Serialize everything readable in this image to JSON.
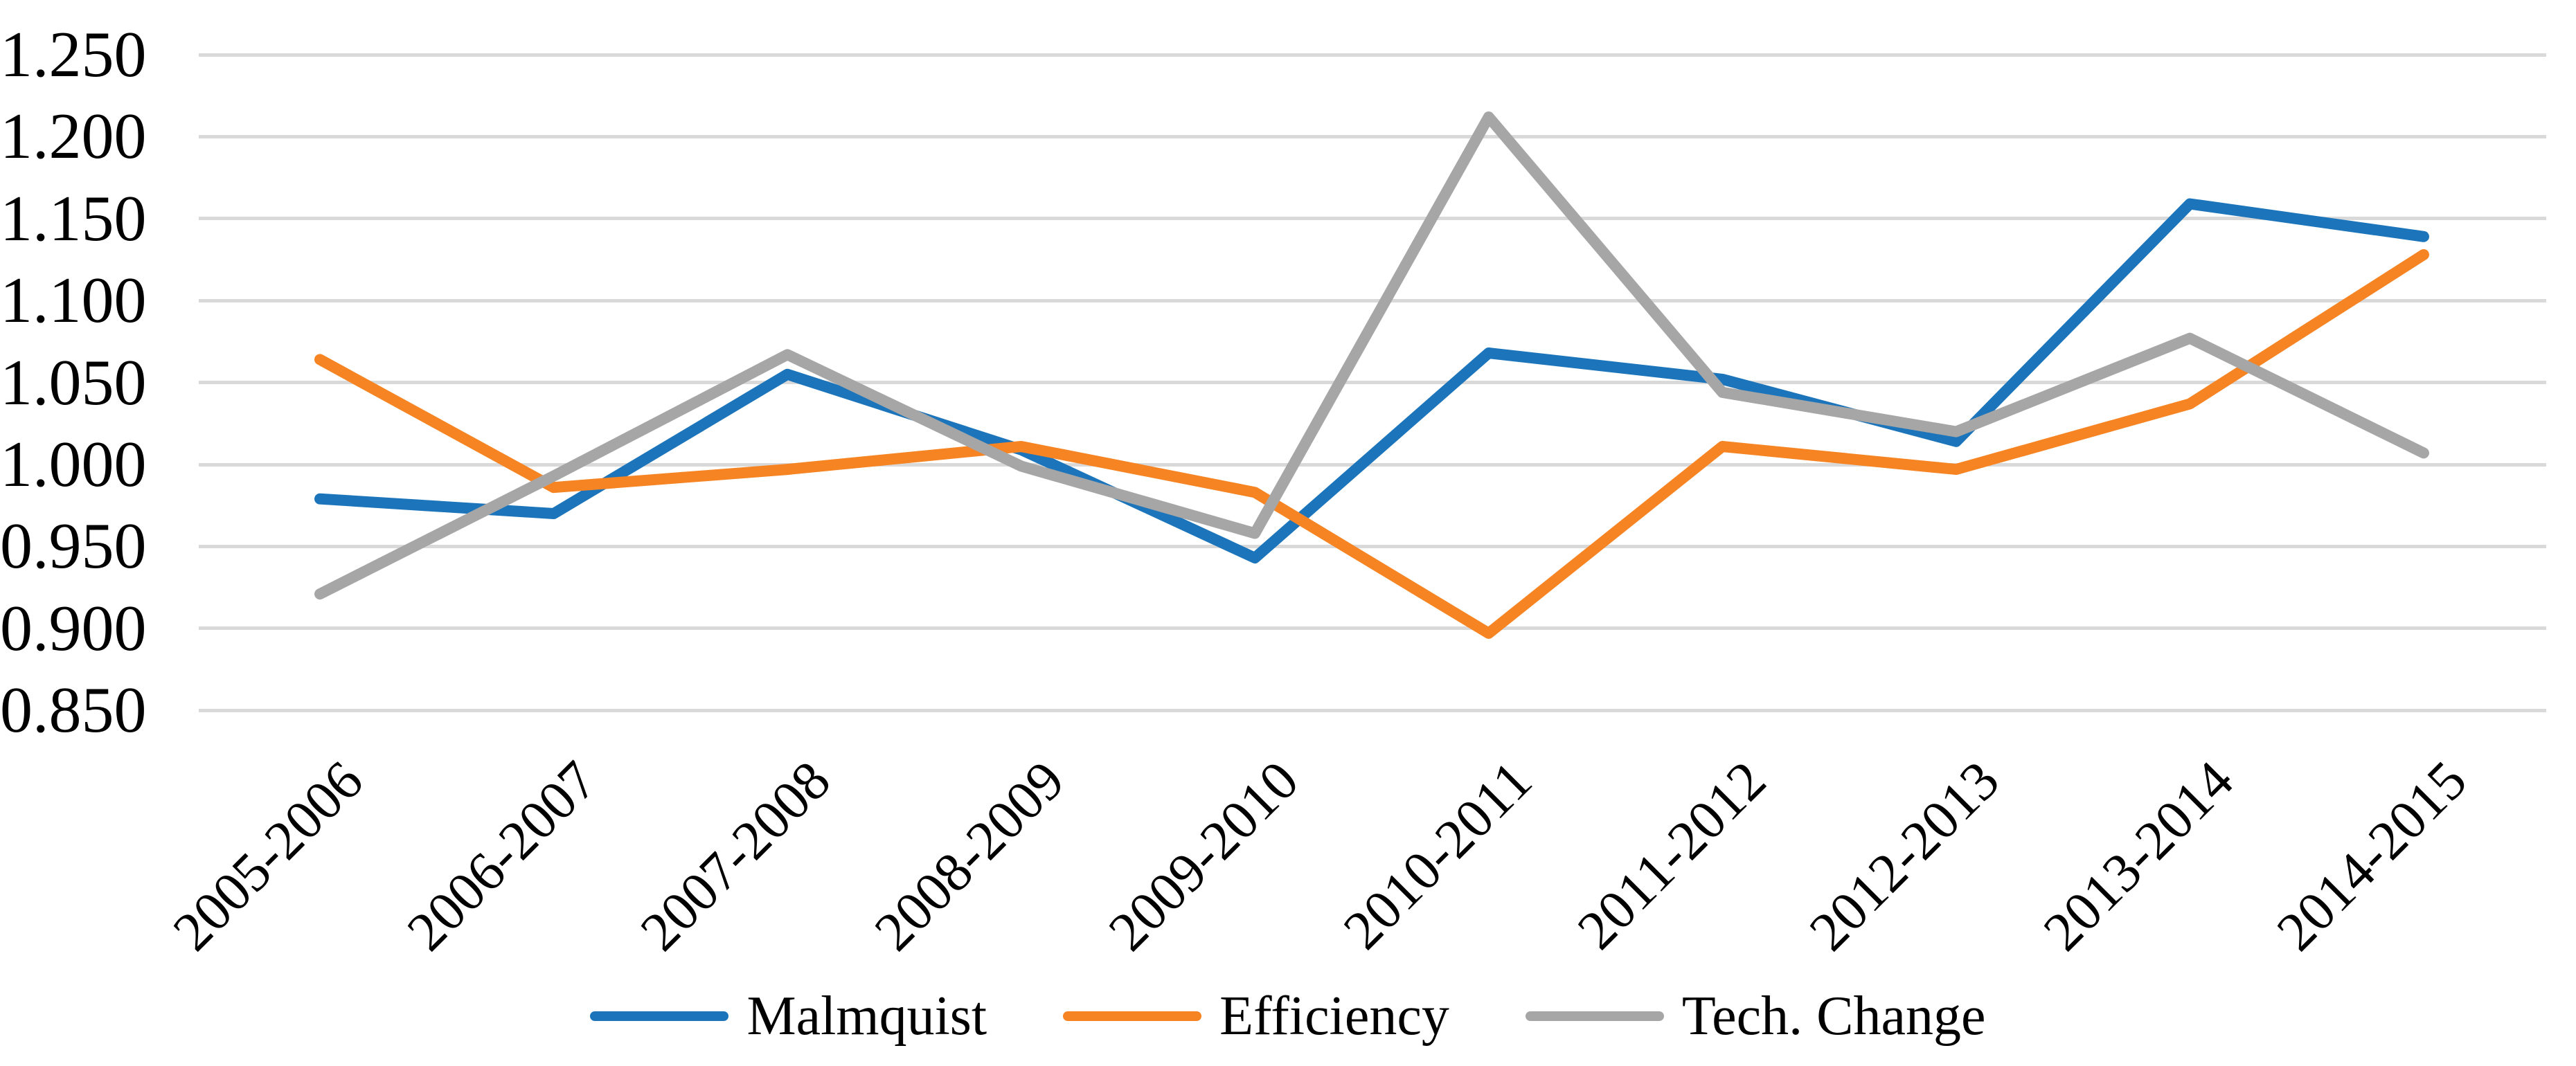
{
  "chart_data": {
    "type": "line",
    "title": "",
    "categories": [
      "2005-2006",
      "2006-2007",
      "2007-2008",
      "2008-2009",
      "2009-2010",
      "2010-2011",
      "2011-2012",
      "2012-2013",
      "2013-2014",
      "2014-2015"
    ],
    "series": [
      {
        "name": "Malmquist",
        "color": "#1c75bb",
        "values": [
          0.979,
          0.97,
          1.055,
          1.009,
          0.943,
          1.068,
          1.052,
          1.014,
          1.159,
          1.139
        ]
      },
      {
        "name": "Efficiency",
        "color": "#f68423",
        "values": [
          1.064,
          0.986,
          0.997,
          1.011,
          0.983,
          0.897,
          1.011,
          0.997,
          1.037,
          1.128
        ]
      },
      {
        "name": "Tech. Change",
        "color": "#a6a6a6",
        "values": [
          0.921,
          0.993,
          1.067,
          0.999,
          0.958,
          1.212,
          1.044,
          1.02,
          1.077,
          1.007
        ]
      }
    ],
    "y_axis": {
      "min": 0.85,
      "max": 1.25,
      "step": 0.05,
      "tick_labels": [
        "1.250",
        "1.200",
        "1.150",
        "1.100",
        "1.050",
        "1.000",
        "0.950",
        "0.900",
        "0.850"
      ]
    },
    "grid": true,
    "legend_position": "bottom",
    "gridline_color": "#d9d9d9",
    "background_color": "#ffffff"
  }
}
